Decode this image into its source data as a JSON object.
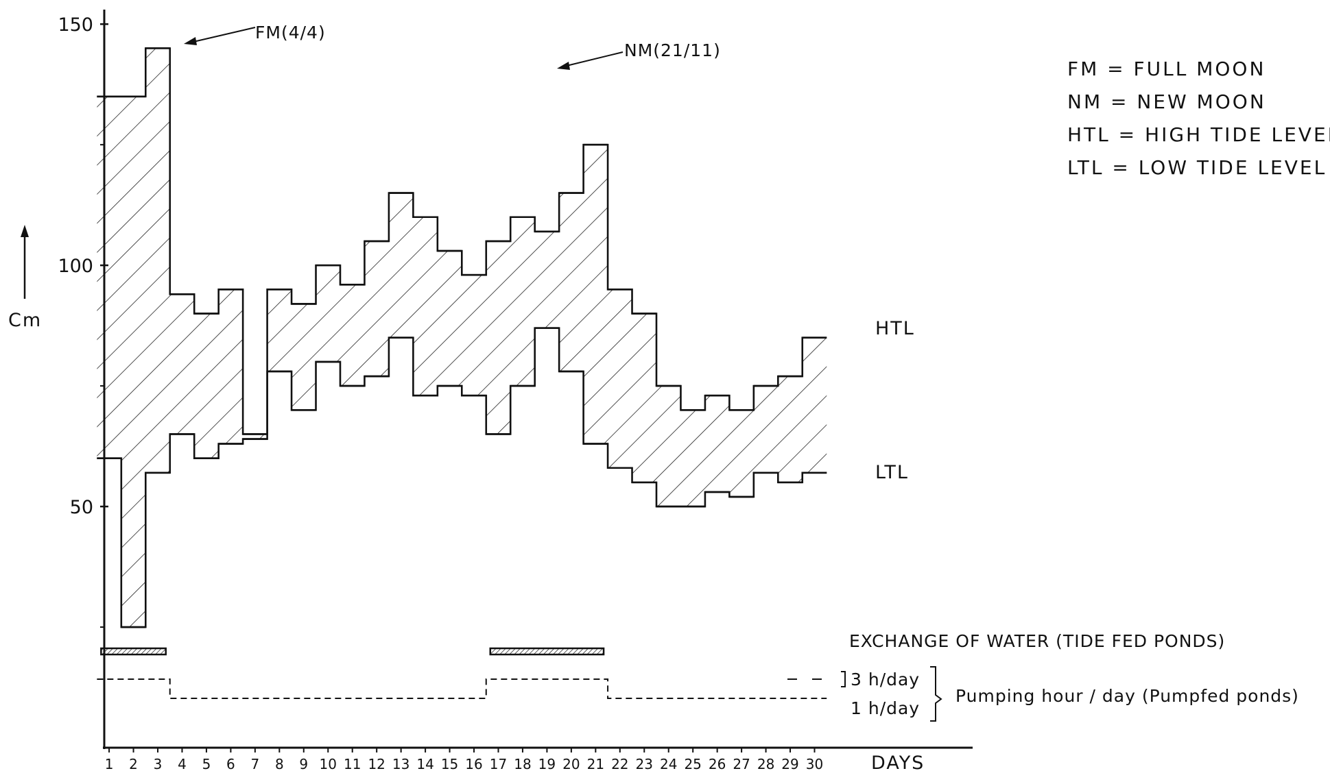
{
  "chart_data": {
    "type": "area",
    "title": "",
    "xlabel": "DAYS",
    "ylabel": "Cm",
    "ylim": [
      0,
      155
    ],
    "xlim": [
      0.8,
      36.5
    ],
    "grid": false,
    "x": [
      1,
      2,
      3,
      4,
      5,
      6,
      7,
      8,
      9,
      10,
      11,
      12,
      13,
      14,
      15,
      16,
      17,
      18,
      19,
      20,
      21,
      22,
      23,
      24,
      25,
      26,
      27,
      28,
      29,
      30
    ],
    "x_tick_labels": [
      "1",
      "2",
      "3",
      "4",
      "5",
      "6",
      "7",
      "8",
      "9",
      "10",
      "11",
      "12",
      "13",
      "14",
      "15",
      "16",
      "17",
      "18",
      "19",
      "20",
      "21",
      "22",
      "23",
      "24",
      "25",
      "26",
      "27",
      "28",
      "29",
      "30"
    ],
    "y_ticks": [
      50,
      100,
      150
    ],
    "y_tick_labels": [
      "50",
      "100",
      "150"
    ],
    "series": [
      {
        "name": "HTL",
        "values": [
          135,
          135,
          145,
          94,
          90,
          95,
          65,
          95,
          92,
          100,
          96,
          105,
          115,
          110,
          103,
          98,
          105,
          110,
          107,
          115,
          125,
          95,
          90,
          75,
          70,
          73,
          70,
          75,
          77,
          85
        ]
      },
      {
        "name": "LTL",
        "values": [
          60,
          25,
          57,
          65,
          60,
          63,
          64,
          78,
          70,
          80,
          75,
          77,
          85,
          73,
          75,
          73,
          65,
          75,
          87,
          78,
          63,
          58,
          55,
          50,
          50,
          53,
          52,
          57,
          55,
          57
        ]
      }
    ],
    "annotations": {
      "full_moon": "FM(4/4)",
      "new_moon": "NM(21/11)"
    },
    "legend": [
      "FM = FULL MOON",
      "NM = NEW MOON",
      "HTL = HIGH TIDE LEVEL",
      "LTL = LOW TIDE LEVEL"
    ],
    "exchange": {
      "label": "EXCHANGE OF WATER (TIDE FED PONDS)",
      "periods": [
        [
          1,
          3
        ],
        [
          17,
          21
        ]
      ]
    },
    "pumping": {
      "label": "Pumping hour / day (Pumpfed ponds)",
      "high_label": "3 h/day",
      "low_label": "1 h/day",
      "hours": [
        3,
        3,
        3,
        1,
        1,
        1,
        1,
        1,
        1,
        1,
        1,
        1,
        1,
        1,
        1,
        1,
        3,
        3,
        3,
        3,
        3,
        1,
        1,
        1,
        1,
        1,
        1,
        1,
        1,
        1
      ]
    },
    "series_labels": {
      "htl": "HTL",
      "ltl": "LTL"
    }
  },
  "colors": {
    "ink": "#111111",
    "background": "#ffffff"
  }
}
